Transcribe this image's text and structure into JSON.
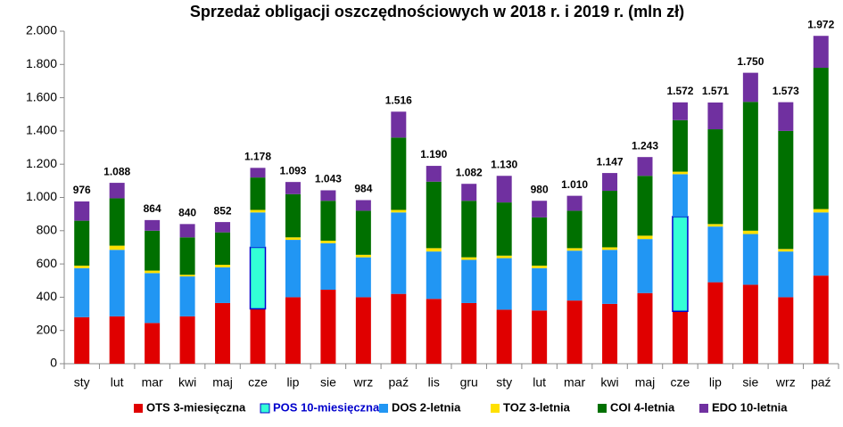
{
  "chart_data": {
    "type": "stacked-bar",
    "title": "Sprzedaż obligacji oszczędnościowych w 2018 r. i 2019 r. (mln zł)",
    "categories": [
      "sty",
      "lut",
      "mar",
      "kwi",
      "maj",
      "cze",
      "lip",
      "sie",
      "wrz",
      "paź",
      "lis",
      "gru",
      "sty",
      "lut",
      "mar",
      "kwi",
      "maj",
      "cze",
      "lip",
      "sie",
      "wrz",
      "paź"
    ],
    "series": [
      {
        "name": "OTS 3-miesięczna",
        "color": "#e00000",
        "values": [
          280,
          285,
          245,
          285,
          365,
          330,
          400,
          445,
          400,
          420,
          390,
          365,
          325,
          320,
          380,
          360,
          425,
          315,
          490,
          475,
          400,
          530
        ]
      },
      {
        "name": "POS 10-miesięczna",
        "color": "#33ffd6",
        "border": "#0000cc",
        "legend_text_color": "#0000cc",
        "values": [
          0,
          0,
          0,
          0,
          0,
          370,
          0,
          0,
          0,
          0,
          0,
          0,
          0,
          0,
          0,
          0,
          0,
          570,
          0,
          0,
          0,
          0
        ]
      },
      {
        "name": "DOS 2-letnia",
        "color": "#2196f3",
        "values": [
          295,
          400,
          300,
          240,
          215,
          210,
          345,
          280,
          240,
          490,
          285,
          260,
          310,
          255,
          300,
          325,
          325,
          255,
          335,
          305,
          275,
          380
        ]
      },
      {
        "name": "TOZ 3-letnia",
        "color": "#ffe000",
        "values": [
          15,
          25,
          15,
          10,
          15,
          15,
          15,
          15,
          15,
          15,
          20,
          15,
          15,
          15,
          15,
          15,
          20,
          15,
          15,
          20,
          15,
          20
        ]
      },
      {
        "name": "COI 4-letnia",
        "color": "#007000",
        "values": [
          270,
          285,
          240,
          225,
          195,
          195,
          260,
          240,
          265,
          435,
          400,
          340,
          320,
          290,
          225,
          340,
          360,
          310,
          570,
          775,
          710,
          850
        ]
      },
      {
        "name": "EDO 10-letnia",
        "color": "#7030a0",
        "values": [
          116,
          93,
          64,
          80,
          62,
          58,
          73,
          63,
          64,
          156,
          95,
          102,
          160,
          100,
          90,
          107,
          113,
          107,
          161,
          175,
          173,
          192
        ]
      }
    ],
    "totals": {
      "values": [
        976,
        1088,
        864,
        840,
        852,
        1178,
        1093,
        1043,
        984,
        1516,
        1190,
        1082,
        1130,
        980,
        1010,
        1147,
        1243,
        1572,
        1571,
        1750,
        1573,
        1972
      ],
      "value_labels": [
        "976",
        "1.088",
        "864",
        "840",
        "852",
        "1.178",
        "1.093",
        "1.043",
        "984",
        "1.516",
        "1.190",
        "1.082",
        "1.130",
        "980",
        "1.010",
        "1.147",
        "1.243",
        "1.572",
        "1.571",
        "1.750",
        "1.573",
        "1.972"
      ]
    },
    "ylim": [
      0,
      2000
    ],
    "yticks": [
      0,
      200,
      400,
      600,
      800,
      {
        "value": 1000,
        "label": "1.000"
      },
      {
        "value": 1200,
        "label": "1.200"
      },
      {
        "value": 1400,
        "label": "1.400"
      },
      {
        "value": 1600,
        "label": "1.600"
      },
      {
        "value": 1800,
        "label": "1.800"
      },
      {
        "value": 2000,
        "label": "2.000"
      }
    ],
    "grid": false,
    "legend": "bottom"
  }
}
